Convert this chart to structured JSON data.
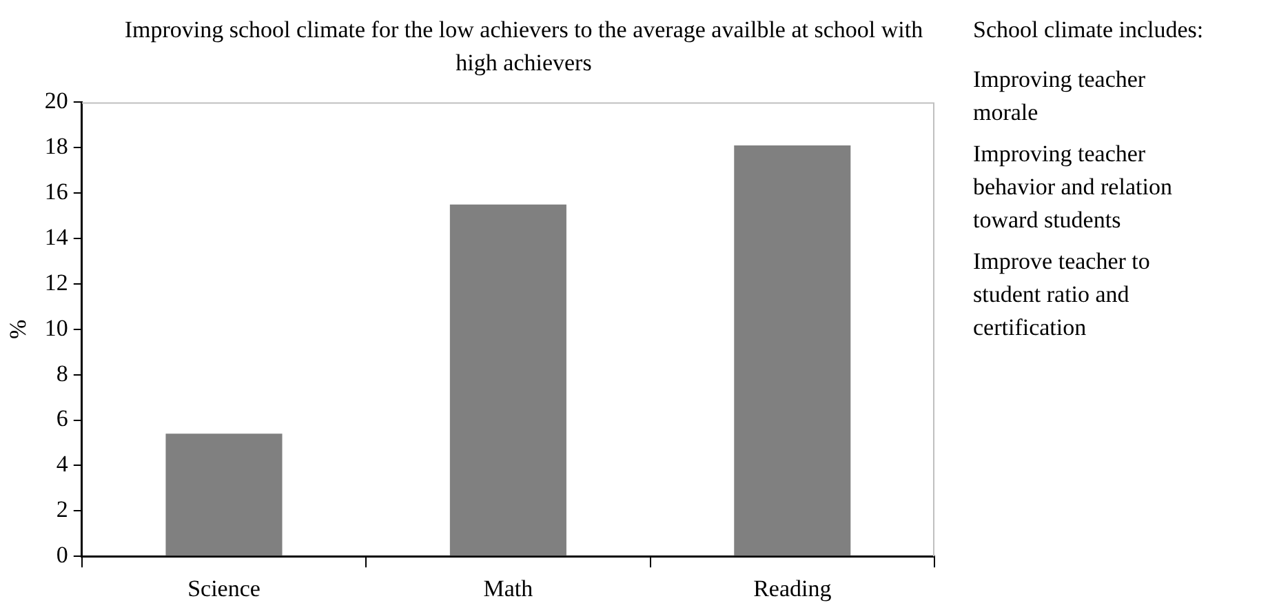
{
  "chart_data": {
    "type": "bar",
    "title": "Improving school climate for the low achievers to the average availble at school with high achievers",
    "ylabel": "%",
    "categories": [
      "Science",
      "Math",
      "Reading"
    ],
    "values": [
      5.4,
      15.5,
      18.1
    ],
    "color": "#808080",
    "ylim": [
      0,
      20
    ],
    "yticks": [
      0,
      2,
      4,
      6,
      8,
      10,
      12,
      14,
      16,
      18,
      20
    ],
    "grid": false,
    "legend": false,
    "annotations": [
      "School climate includes:",
      "Improving teacher morale",
      "Improving teacher behavior and relation toward students",
      "Improve teacher to student ratio and certification"
    ]
  }
}
